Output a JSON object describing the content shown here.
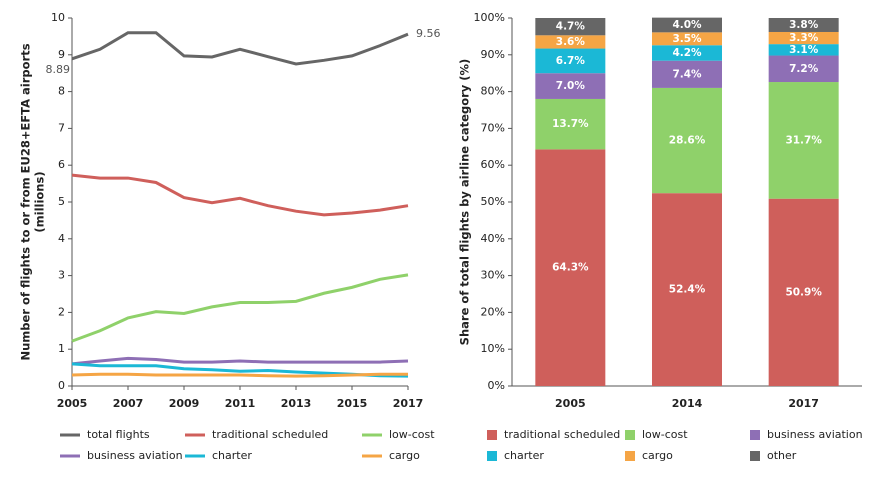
{
  "chart_data": [
    {
      "type": "line",
      "ylabel": [
        "Number of flights to or from EU28+EFTA airports",
        "(millions)"
      ],
      "xlim": [
        2005,
        2017
      ],
      "xticks": [
        2005,
        2007,
        2009,
        2011,
        2013,
        2015,
        2017
      ],
      "ylim": [
        0,
        10
      ],
      "yticks": [
        0,
        1,
        2,
        3,
        4,
        5,
        6,
        7,
        8,
        9,
        10
      ],
      "x": [
        2005,
        2006,
        2007,
        2008,
        2009,
        2010,
        2011,
        2012,
        2013,
        2014,
        2015,
        2016,
        2017
      ],
      "series": [
        {
          "name": "total flights",
          "color": "#666666",
          "values": [
            8.89,
            9.15,
            9.6,
            9.6,
            8.97,
            8.94,
            9.15,
            8.95,
            8.75,
            8.85,
            8.97,
            9.25,
            9.56
          ],
          "value_labels": [
            "8.89",
            null,
            null,
            null,
            null,
            null,
            null,
            null,
            null,
            null,
            null,
            null,
            "9.56"
          ]
        },
        {
          "name": "traditional scheduled",
          "color": "#cf5f5b",
          "values": [
            5.73,
            5.65,
            5.65,
            5.53,
            5.12,
            4.98,
            5.1,
            4.9,
            4.75,
            4.65,
            4.7,
            4.78,
            4.9
          ]
        },
        {
          "name": "low-cost",
          "color": "#8fd16a",
          "values": [
            1.22,
            1.5,
            1.85,
            2.02,
            1.97,
            2.15,
            2.27,
            2.27,
            2.3,
            2.52,
            2.68,
            2.9,
            3.02
          ]
        },
        {
          "name": "business aviation",
          "color": "#8e6fb5",
          "values": [
            0.6,
            0.68,
            0.75,
            0.72,
            0.65,
            0.65,
            0.68,
            0.65,
            0.65,
            0.65,
            0.65,
            0.65,
            0.68
          ]
        },
        {
          "name": "charter",
          "color": "#1bb8d6",
          "values": [
            0.6,
            0.55,
            0.55,
            0.55,
            0.47,
            0.44,
            0.4,
            0.42,
            0.38,
            0.35,
            0.32,
            0.28,
            0.27
          ]
        },
        {
          "name": "cargo",
          "color": "#f5a545",
          "values": [
            0.3,
            0.32,
            0.32,
            0.3,
            0.3,
            0.3,
            0.3,
            0.28,
            0.27,
            0.28,
            0.3,
            0.32,
            0.32
          ]
        }
      ]
    },
    {
      "type": "bar",
      "ylabel": [
        "Share of total flights by airline category (%)"
      ],
      "categories": [
        "2005",
        "2014",
        "2017"
      ],
      "ylim": [
        0,
        100
      ],
      "yticks": [
        {
          "value": 0,
          "label": "0%"
        },
        {
          "value": 10,
          "label": "10%"
        },
        {
          "value": 20,
          "label": "20%"
        },
        {
          "value": 30,
          "label": "30%"
        },
        {
          "value": 40,
          "label": "40%"
        },
        {
          "value": 50,
          "label": "50%"
        },
        {
          "value": 60,
          "label": "60%"
        },
        {
          "value": 70,
          "label": "70%"
        },
        {
          "value": 80,
          "label": "80%"
        },
        {
          "value": 90,
          "label": "90%"
        },
        {
          "value": 100,
          "label": "100%"
        }
      ],
      "series": [
        {
          "name": "traditional scheduled",
          "color": "#cf5f5b",
          "values": [
            64.3,
            52.4,
            50.9
          ],
          "value_labels": [
            "64.3%",
            "52.4%",
            "50.9%"
          ]
        },
        {
          "name": "low-cost",
          "color": "#8fd16a",
          "values": [
            13.7,
            28.6,
            31.7
          ],
          "value_labels": [
            "13.7%",
            "28.6%",
            "31.7%"
          ]
        },
        {
          "name": "business aviation",
          "color": "#8e6fb5",
          "values": [
            7.0,
            7.4,
            7.2
          ],
          "value_labels": [
            "7.0%",
            "7.4%",
            "7.2%"
          ]
        },
        {
          "name": "charter",
          "color": "#1bb8d6",
          "values": [
            6.7,
            4.2,
            3.1
          ],
          "value_labels": [
            "6.7%",
            "4.2%",
            "3.1%"
          ]
        },
        {
          "name": "cargo",
          "color": "#f5a545",
          "values": [
            3.6,
            3.5,
            3.3
          ],
          "value_labels": [
            "3.6%",
            "3.5%",
            "3.3%"
          ]
        },
        {
          "name": "other",
          "color": "#666666",
          "values": [
            4.7,
            4.0,
            3.8
          ],
          "value_labels": [
            "4.7%",
            "4.0%",
            "3.8%"
          ]
        }
      ]
    }
  ]
}
